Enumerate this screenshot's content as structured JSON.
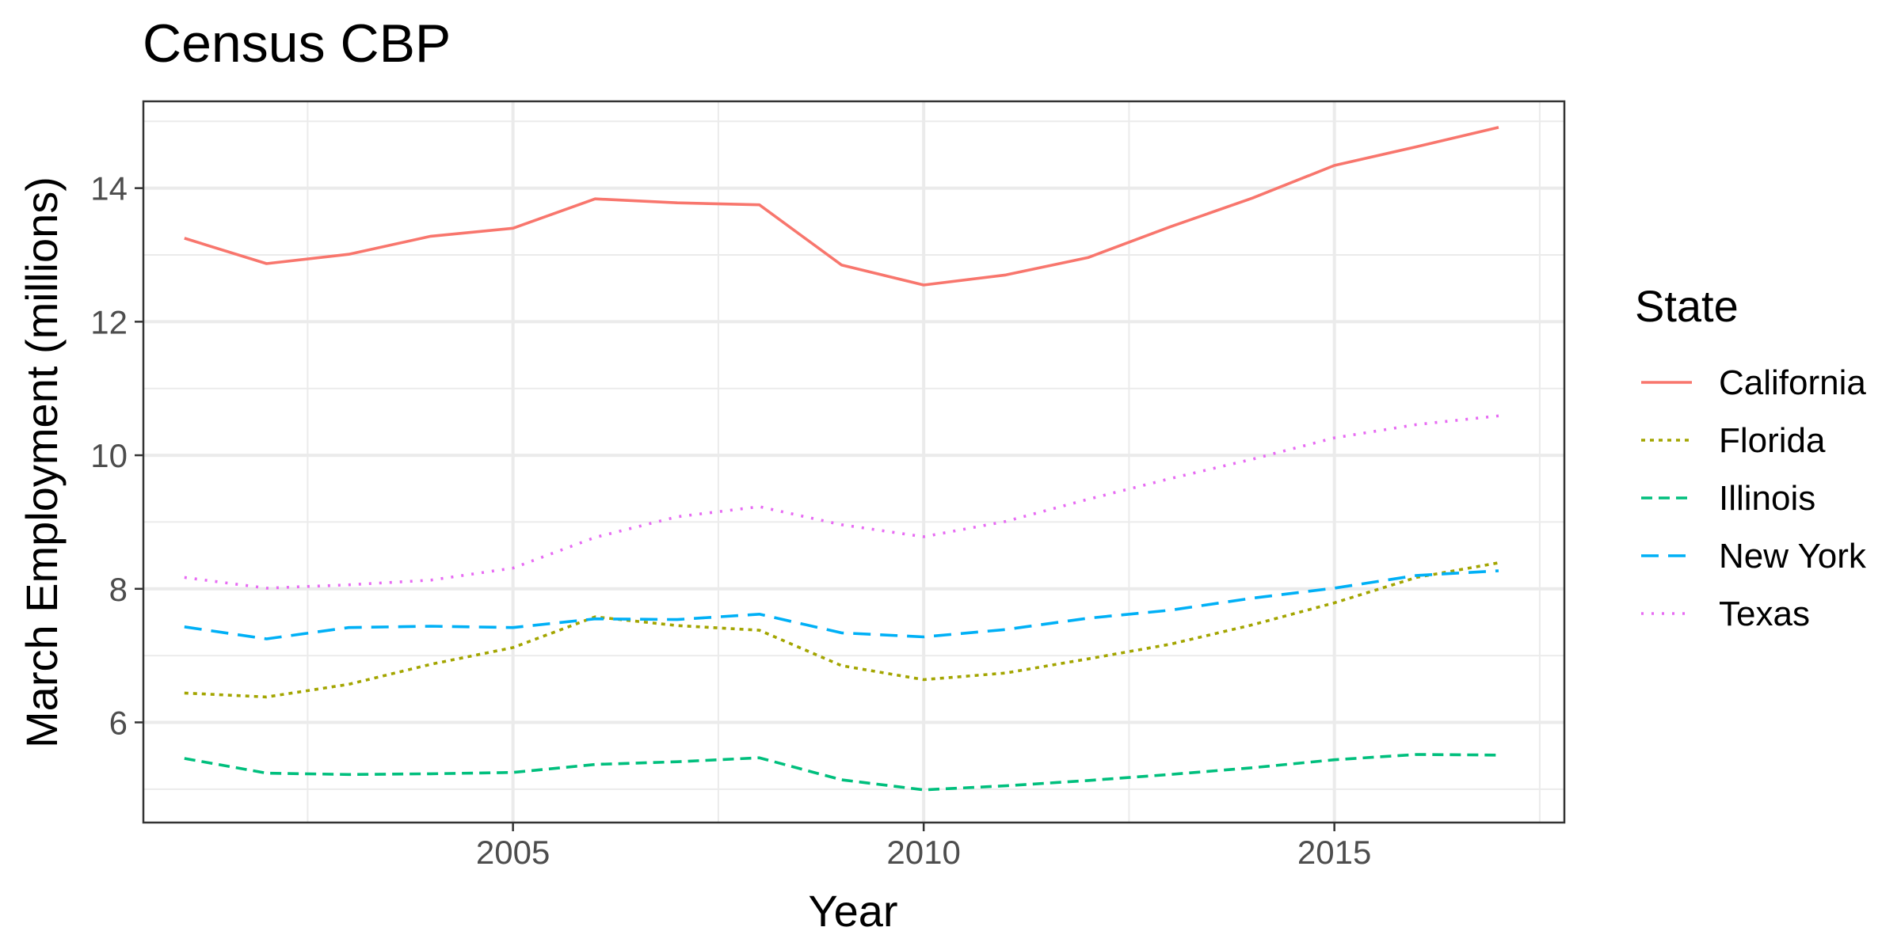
{
  "chart_data": {
    "type": "line",
    "title": "Census CBP",
    "xlabel": "Year",
    "ylabel": "March Employment (millions)",
    "xlim": [
      2000.5,
      2017.8
    ],
    "ylim": [
      4.5,
      15.3
    ],
    "x_major_ticks": [
      2005,
      2010,
      2015
    ],
    "x_minor_ticks": [
      2002.5,
      2007.5,
      2012.5,
      2017.5
    ],
    "y_major_ticks": [
      6,
      8,
      10,
      12,
      14
    ],
    "y_minor_ticks": [
      5,
      7,
      9,
      11,
      13,
      15
    ],
    "x_tick_labels": [
      "2005",
      "2010",
      "2015"
    ],
    "y_tick_labels": [
      "6",
      "8",
      "10",
      "12",
      "14"
    ],
    "grid": true,
    "legend": {
      "title": "State",
      "position": "right"
    },
    "x": [
      2001,
      2002,
      2003,
      2004,
      2005,
      2006,
      2007,
      2008,
      2009,
      2010,
      2011,
      2012,
      2013,
      2014,
      2015,
      2016,
      2017
    ],
    "series": [
      {
        "name": "California",
        "color": "#F8766D",
        "dash": "solid",
        "values": [
          13.25,
          12.87,
          13.01,
          13.28,
          13.4,
          13.84,
          13.78,
          13.75,
          12.85,
          12.55,
          12.7,
          12.96,
          13.42,
          13.85,
          14.34,
          14.62,
          14.91
        ]
      },
      {
        "name": "Florida",
        "color": "#A3A500",
        "dash": "dotted-short",
        "values": [
          6.44,
          6.38,
          6.57,
          6.87,
          7.12,
          7.58,
          7.45,
          7.38,
          6.85,
          6.64,
          6.74,
          6.95,
          7.17,
          7.46,
          7.79,
          8.17,
          8.39
        ]
      },
      {
        "name": "Illinois",
        "color": "#00BF7D",
        "dash": "dashed",
        "values": [
          5.46,
          5.24,
          5.22,
          5.23,
          5.25,
          5.37,
          5.41,
          5.47,
          5.14,
          4.99,
          5.05,
          5.13,
          5.22,
          5.32,
          5.44,
          5.52,
          5.51
        ]
      },
      {
        "name": "New York",
        "color": "#00B0F6",
        "dash": "longdash",
        "values": [
          7.43,
          7.25,
          7.42,
          7.44,
          7.42,
          7.55,
          7.54,
          7.62,
          7.34,
          7.28,
          7.39,
          7.56,
          7.68,
          7.86,
          8.01,
          8.2,
          8.27
        ]
      },
      {
        "name": "Texas",
        "color": "#E76BF3",
        "dash": "dotted",
        "values": [
          8.17,
          8.01,
          8.06,
          8.13,
          8.31,
          8.77,
          9.08,
          9.23,
          8.96,
          8.78,
          9.01,
          9.34,
          9.65,
          9.94,
          10.26,
          10.46,
          10.59
        ]
      }
    ]
  }
}
